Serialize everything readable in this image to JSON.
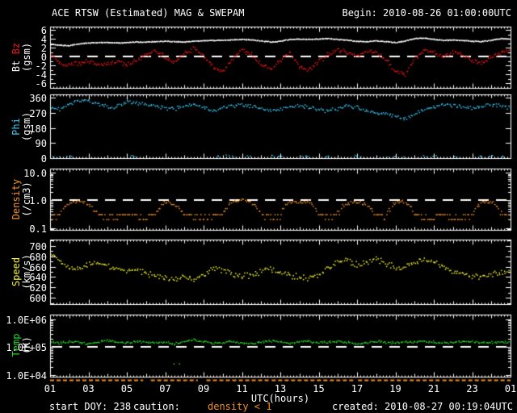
{
  "window": {
    "title_left": "ACE RTSW (Estimated) MAG & SWEPAM",
    "title_right": "Begin: 2010-08-26 01:00:00UTC"
  },
  "footer": {
    "start_doy": "start DOY: 238",
    "caution_label": "caution:",
    "caution_value": "density < 1",
    "created": "created: 2010-08-27 00:19:04UTC"
  },
  "colors": {
    "background": "#000000",
    "frame": "#ffffff",
    "bt": "#ffffff",
    "bz": "#ef1515",
    "phi": "#35c6f2",
    "density": "#f09020",
    "speed": "#f6f62a",
    "temp": "#27d427",
    "caution": "#f09020"
  },
  "chart_data": {
    "type": "scatter",
    "title": "ACE RTSW (Estimated) MAG & SWEPAM",
    "x_axis_label": "UTC(hours)",
    "x_range": [
      1,
      25
    ],
    "x_tick_labels": [
      "01",
      "03",
      "05",
      "07",
      "09",
      "11",
      "13",
      "15",
      "17",
      "19",
      "21",
      "23",
      "01"
    ],
    "caution_segments": [
      [
        1.0,
        5.85
      ],
      [
        6.25,
        8.7
      ],
      [
        9.15,
        12.4
      ],
      [
        12.55,
        16.9
      ],
      [
        17.05,
        21.3
      ],
      [
        21.45,
        25.0
      ]
    ],
    "panels": [
      {
        "id": "mag",
        "name_parts": [
          {
            "text": "Bt ",
            "color": "#ffffff"
          },
          {
            "text": "Bz",
            "color": "#ef1515"
          }
        ],
        "unit_label": "(gsm)",
        "scale": "linear",
        "ylim": [
          -7.0,
          6.8
        ],
        "minor_step": 1,
        "ref_line": 0,
        "yticks": [
          {
            "v": 6,
            "label": "6"
          },
          {
            "v": 4,
            "label": "4"
          },
          {
            "v": 2,
            "label": "2"
          },
          {
            "v": 0,
            "label": "0"
          },
          {
            "v": -2,
            "label": "-2"
          },
          {
            "v": -4,
            "label": "-4"
          },
          {
            "v": -6,
            "label": "-6"
          }
        ],
        "series": [
          {
            "name": "Bt",
            "color": "#ffffff",
            "mode": "trend",
            "x_start": 1,
            "x_step": 0.5,
            "pts_per_hour": 24,
            "jitter": 0.12,
            "y": [
              2.8,
              2.6,
              2.5,
              2.9,
              3.1,
              3.2,
              3.2,
              3.1,
              3.2,
              3.3,
              3.3,
              3.4,
              3.5,
              3.4,
              3.3,
              3.5,
              3.6,
              3.7,
              3.7,
              3.8,
              3.9,
              3.8,
              3.6,
              3.3,
              3.5,
              3.9,
              4.0,
              3.9,
              4.0,
              4.1,
              3.9,
              3.7,
              3.5,
              3.4,
              3.6,
              3.4,
              3.2,
              3.5,
              4.1,
              4.2,
              3.9,
              3.7,
              3.8,
              3.7,
              3.5,
              3.4,
              3.7,
              4.1,
              4.0
            ]
          },
          {
            "name": "Bz",
            "color": "#ef1515",
            "mode": "trend",
            "x_start": 1,
            "x_step": 0.5,
            "pts_per_hour": 16,
            "jitter": 0.6,
            "y": [
              0.5,
              -1.2,
              -1.8,
              -1.5,
              -1.0,
              -2.0,
              -1.6,
              -1.2,
              -1.8,
              -0.8,
              0.5,
              1.2,
              0.0,
              -1.5,
              0.8,
              1.8,
              0.3,
              -2.2,
              -3.2,
              -0.8,
              1.5,
              0.5,
              -1.8,
              -2.8,
              -0.8,
              1.0,
              -2.2,
              -3.0,
              -1.2,
              0.5,
              1.5,
              1.0,
              0.2,
              1.2,
              0.8,
              -0.5,
              -3.2,
              -4.0,
              -0.5,
              1.5,
              1.0,
              0.0,
              1.0,
              0.5,
              -0.8,
              -1.5,
              0.0,
              1.0,
              1.5
            ]
          }
        ]
      },
      {
        "id": "phi",
        "name_parts": [
          {
            "text": "Phi",
            "color": "#35c6f2"
          }
        ],
        "unit_label": "(gsm)",
        "scale": "linear",
        "ylim": [
          0,
          380
        ],
        "minor_step": null,
        "ref_line": null,
        "yticks": [
          {
            "v": 360,
            "label": "360"
          },
          {
            "v": 270,
            "label": "270"
          },
          {
            "v": 180,
            "label": "180"
          },
          {
            "v": 90,
            "label": "90"
          },
          {
            "v": 0,
            "label": "0"
          }
        ],
        "series": [
          {
            "name": "Phi",
            "color": "#35c6f2",
            "mode": "trend",
            "x_start": 1,
            "x_step": 0.5,
            "pts_per_hour": 13,
            "jitter": 14,
            "wrap360": true,
            "y": [
              300,
              290,
              320,
              345,
              340,
              330,
              300,
              310,
              335,
              330,
              320,
              310,
              300,
              295,
              310,
              320,
              300,
              285,
              295,
              310,
              320,
              310,
              295,
              280,
              290,
              305,
              315,
              300,
              290,
              280,
              295,
              310,
              300,
              285,
              270,
              260,
              250,
              230,
              260,
              290,
              310,
              320,
              315,
              305,
              295,
              310,
              320,
              310,
              300
            ]
          },
          {
            "name": "Phi-low",
            "color": "#35c6f2",
            "mode": "points",
            "jitter": 5,
            "x": [
              1.2,
              1.5,
              2.0,
              5.3,
              5.6,
              9.8,
              10.3,
              10.6,
              11.0,
              11.3,
              12.6,
              13.0,
              14.2,
              14.5,
              15.5,
              17.0,
              17.3,
              18.5,
              19.0,
              19.3,
              20.5,
              21.0,
              22.2,
              23.5,
              24.0,
              24.5
            ],
            "y": [
              5,
              10,
              8,
              12,
              6,
              10,
              14,
              8,
              5,
              10,
              12,
              8,
              10,
              6,
              9,
              12,
              8,
              10,
              5,
              8,
              10,
              12,
              6,
              9,
              11,
              8
            ]
          }
        ]
      },
      {
        "id": "density",
        "name_parts": [
          {
            "text": "Density",
            "color": "#f09020"
          }
        ],
        "unit_label": "(/cm3)",
        "scale": "log",
        "ylim": [
          0.085,
          14
        ],
        "ref_line": 1.0,
        "yticks": [
          {
            "v": 10,
            "label": "10.0"
          },
          {
            "v": 1,
            "label": "1.0"
          },
          {
            "v": 0.1,
            "label": "0.1"
          }
        ],
        "series": [
          {
            "name": "Density",
            "color": "#f09020",
            "mode": "trend",
            "x_start": 1,
            "x_step": 0.5,
            "pts_per_hour": 13,
            "jitter_log": 0.09,
            "quantize": 0.1,
            "y": [
              0.25,
              0.3,
              0.8,
              0.9,
              0.7,
              0.3,
              0.25,
              0.25,
              0.3,
              0.25,
              0.22,
              0.3,
              0.8,
              0.7,
              0.3,
              0.25,
              0.22,
              0.25,
              0.3,
              0.9,
              1.0,
              0.8,
              0.3,
              0.25,
              0.25,
              0.9,
              0.8,
              0.9,
              0.3,
              0.25,
              0.3,
              0.8,
              0.9,
              0.7,
              0.3,
              0.25,
              0.8,
              0.9,
              0.3,
              0.25,
              0.22,
              0.3,
              0.25,
              0.22,
              0.3,
              0.8,
              0.9,
              0.3,
              0.25
            ]
          }
        ]
      },
      {
        "id": "speed",
        "name_parts": [
          {
            "text": "Speed",
            "color": "#f6f62a"
          }
        ],
        "unit_label": "(km/s)",
        "scale": "linear",
        "ylim": [
          588,
          712
        ],
        "minor_step": 10,
        "ref_line": null,
        "yticks": [
          {
            "v": 700,
            "label": "700"
          },
          {
            "v": 680,
            "label": "680"
          },
          {
            "v": 660,
            "label": "660"
          },
          {
            "v": 640,
            "label": "640"
          },
          {
            "v": 620,
            "label": "620"
          },
          {
            "v": 600,
            "label": "600"
          }
        ],
        "series": [
          {
            "name": "Speed",
            "color": "#f6f62a",
            "mode": "trend",
            "x_start": 1,
            "x_step": 0.5,
            "pts_per_hour": 13,
            "jitter": 7,
            "y": [
              688,
              672,
              660,
              658,
              665,
              668,
              662,
              656,
              650,
              655,
              646,
              642,
              640,
              636,
              640,
              634,
              644,
              658,
              654,
              646,
              640,
              644,
              650,
              656,
              648,
              644,
              640,
              638,
              646,
              656,
              668,
              672,
              664,
              668,
              674,
              666,
              658,
              660,
              670,
              676,
              668,
              658,
              648,
              645,
              640,
              638,
              644,
              650,
              648
            ]
          }
        ]
      },
      {
        "id": "temp",
        "name_parts": [
          {
            "text": "Temp",
            "color": "#27d427"
          }
        ],
        "unit_label": "(K)",
        "scale": "log",
        "ylim": [
          8800,
          1450000
        ],
        "ref_line": 100000,
        "yticks": [
          {
            "v": 1000000,
            "label": "1.0E+06"
          },
          {
            "v": 100000,
            "label": "1.0E+05"
          },
          {
            "v": 10000,
            "label": "1.0E+04"
          }
        ],
        "series": [
          {
            "name": "Temp",
            "color": "#27d427",
            "mode": "trend",
            "x_start": 1,
            "x_step": 0.5,
            "pts_per_hour": 15,
            "jitter_log": 0.05,
            "y": [
              150000,
              140000,
              160000,
              150000,
              130000,
              150000,
              170000,
              150000,
              140000,
              160000,
              150000,
              140000,
              150000,
              130000,
              160000,
              180000,
              150000,
              140000,
              150000,
              160000,
              140000,
              130000,
              150000,
              170000,
              150000,
              140000,
              150000,
              160000,
              140000,
              150000,
              160000,
              150000,
              130000,
              140000,
              160000,
              150000,
              140000,
              150000,
              150000,
              160000,
              150000,
              140000,
              150000,
              160000,
              150000,
              140000,
              150000,
              150000,
              140000
            ]
          },
          {
            "name": "Temp-outlier",
            "color": "#27d427",
            "mode": "points",
            "jitter": 0,
            "x": [
              7.6
            ],
            "y": [
              25000
            ]
          }
        ]
      }
    ]
  }
}
